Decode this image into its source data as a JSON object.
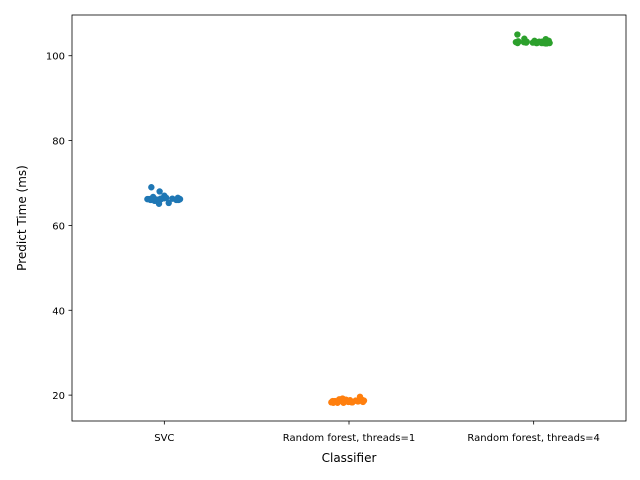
{
  "chart_data": {
    "type": "scatter",
    "subtype": "strip",
    "title": "",
    "xlabel": "Classifier",
    "ylabel": "Predict Time (ms)",
    "categories": [
      "SVC",
      "Random forest, threads=1",
      "Random forest, threads=4"
    ],
    "ylim": [
      13.9,
      109.6
    ],
    "yticks": [
      20,
      40,
      60,
      80,
      100
    ],
    "ytick_labels": [
      "20",
      "40",
      "60",
      "80",
      "100"
    ],
    "grid": false,
    "legend": "none",
    "series": [
      {
        "category": "SVC",
        "color": "#1f77b4",
        "values": [
          66.0,
          66.1,
          66.2,
          66.1,
          66.3,
          69.0,
          68.0,
          67.0,
          65.3,
          65.8,
          66.0,
          66.2,
          66.3,
          66.3,
          66.4,
          66.1,
          66.2,
          66.3,
          66.0,
          65.8,
          66.2,
          66.5,
          66.7,
          66.0,
          66.3,
          66.4,
          66.5,
          65.1
        ]
      },
      {
        "category": "Random forest, threads=1",
        "color": "#ff7f0e",
        "values": [
          18.7,
          18.2,
          18.9,
          18.6,
          18.4,
          18.8,
          19.6,
          18.3,
          18.5,
          18.9,
          18.2,
          18.4,
          18.6,
          18.3,
          18.2,
          18.5,
          18.9,
          19.0,
          18.4,
          18.3,
          18.6,
          19.2,
          18.5,
          18.3,
          18.6,
          18.5,
          18.7,
          18.3
        ]
      },
      {
        "category": "Random forest, threads=4",
        "color": "#2ca02c",
        "values": [
          103.0,
          103.2,
          103.1,
          102.9,
          105.0,
          103.5,
          104.0,
          103.3,
          103.1,
          103.0,
          103.2,
          103.0,
          103.3,
          103.5,
          102.9,
          103.1,
          103.2,
          103.3,
          103.1,
          103.0,
          103.4,
          103.0,
          103.2,
          103.1,
          103.3,
          103.0,
          103.2,
          103.9
        ]
      }
    ]
  }
}
